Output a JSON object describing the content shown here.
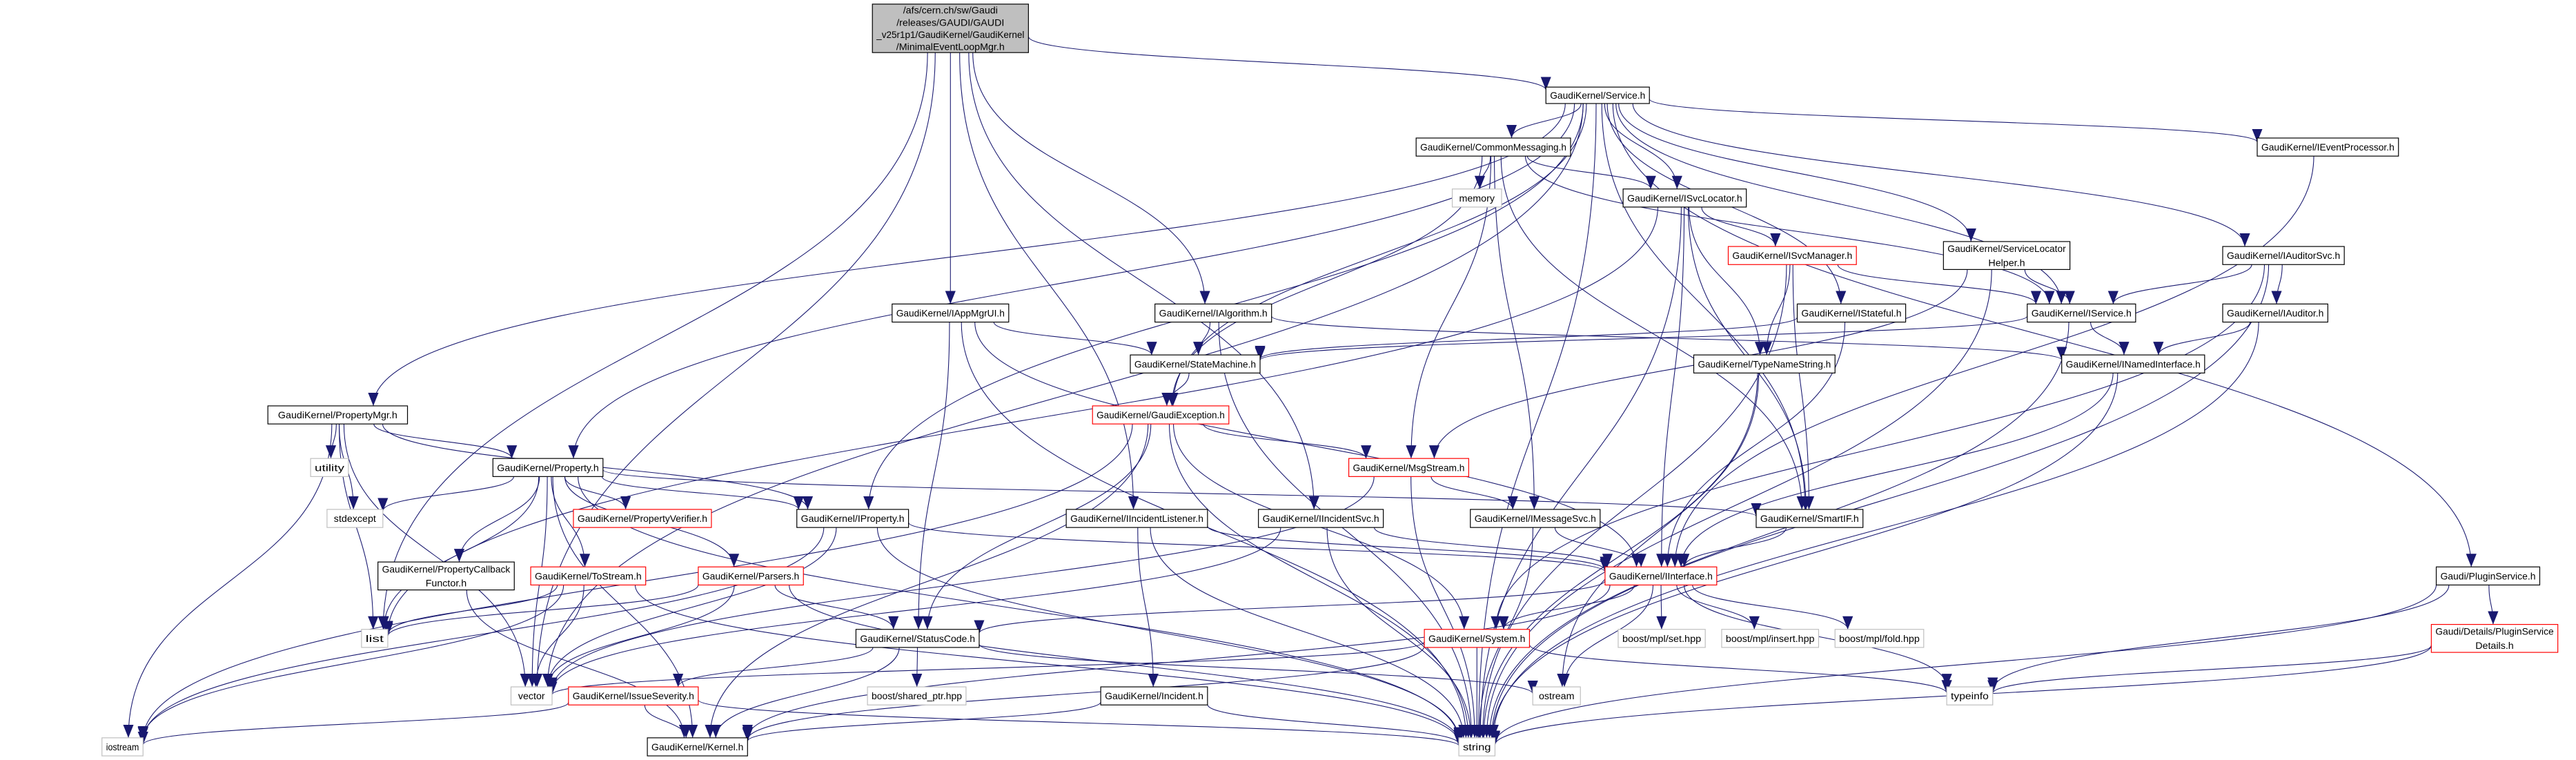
{
  "graph": {
    "type": "include-dependency-graph",
    "colors": {
      "edge": "#191970",
      "documented": "#000000",
      "truncated": "#ff0000",
      "external": "#bfbfbf",
      "current_fill": "#bfbfbf"
    },
    "nodes": [
      {
        "id": "main",
        "style": "current",
        "lines": [
          "/afs/cern.ch/sw/Gaudi",
          "/releases/GAUDI/GAUDI",
          "_v25r1p1/GaudiKernel/GaudiKernel",
          "/MinimalEventLoopMgr.h"
        ]
      },
      {
        "id": "service",
        "style": "documented",
        "lines": [
          "GaudiKernel/Service.h"
        ]
      },
      {
        "id": "commonmessaging",
        "style": "documented",
        "lines": [
          "GaudiKernel/CommonMessaging.h"
        ]
      },
      {
        "id": "memory",
        "style": "external",
        "lines": [
          "memory"
        ]
      },
      {
        "id": "isvclocator",
        "style": "documented",
        "lines": [
          "GaudiKernel/ISvcLocator.h"
        ]
      },
      {
        "id": "ieventprocessor",
        "style": "documented",
        "lines": [
          "GaudiKernel/IEventProcessor.h"
        ]
      },
      {
        "id": "isvcmanager",
        "style": "truncated",
        "lines": [
          "GaudiKernel/ISvcManager.h"
        ]
      },
      {
        "id": "servicelocatorhelper",
        "style": "documented",
        "lines": [
          "GaudiKernel/ServiceLocator",
          "Helper.h"
        ]
      },
      {
        "id": "iauditorsvc",
        "style": "documented",
        "lines": [
          "GaudiKernel/IAuditorSvc.h"
        ]
      },
      {
        "id": "istateful",
        "style": "documented",
        "lines": [
          "GaudiKernel/IStateful.h"
        ]
      },
      {
        "id": "iservice",
        "style": "documented",
        "lines": [
          "GaudiKernel/IService.h"
        ]
      },
      {
        "id": "iauditor",
        "style": "documented",
        "lines": [
          "GaudiKernel/IAuditor.h"
        ]
      },
      {
        "id": "typenamestring",
        "style": "documented",
        "lines": [
          "GaudiKernel/TypeNameString.h"
        ]
      },
      {
        "id": "inamedinterface",
        "style": "documented",
        "lines": [
          "GaudiKernel/INamedInterface.h"
        ]
      },
      {
        "id": "iappmgrui",
        "style": "documented",
        "lines": [
          "GaudiKernel/IAppMgrUI.h"
        ]
      },
      {
        "id": "ialgorithm",
        "style": "documented",
        "lines": [
          "GaudiKernel/IAlgorithm.h"
        ]
      },
      {
        "id": "statemachine",
        "style": "documented",
        "lines": [
          "GaudiKernel/StateMachine.h"
        ]
      },
      {
        "id": "gaudiexception",
        "style": "truncated",
        "lines": [
          "GaudiKernel/GaudiException.h"
        ]
      },
      {
        "id": "propertymgr",
        "style": "documented",
        "lines": [
          "GaudiKernel/PropertyMgr.h"
        ]
      },
      {
        "id": "msgstream",
        "style": "truncated",
        "lines": [
          "GaudiKernel/MsgStream.h"
        ]
      },
      {
        "id": "utility",
        "style": "external",
        "lines": [
          "utility"
        ]
      },
      {
        "id": "property",
        "style": "documented",
        "lines": [
          "GaudiKernel/Property.h"
        ]
      },
      {
        "id": "stdexcept",
        "style": "external",
        "lines": [
          "stdexcept"
        ]
      },
      {
        "id": "propertyverifier",
        "style": "truncated",
        "lines": [
          "GaudiKernel/PropertyVerifier.h"
        ]
      },
      {
        "id": "iproperty",
        "style": "documented",
        "lines": [
          "GaudiKernel/IProperty.h"
        ]
      },
      {
        "id": "iincidentlistener",
        "style": "documented",
        "lines": [
          "GaudiKernel/IIncidentListener.h"
        ]
      },
      {
        "id": "iincidentsvc",
        "style": "documented",
        "lines": [
          "GaudiKernel/IIncidentSvc.h"
        ]
      },
      {
        "id": "imessagesvc",
        "style": "documented",
        "lines": [
          "GaudiKernel/IMessageSvc.h"
        ]
      },
      {
        "id": "smartif",
        "style": "documented",
        "lines": [
          "GaudiKernel/SmartIF.h"
        ]
      },
      {
        "id": "propertycallbackfunctor",
        "style": "documented",
        "lines": [
          "GaudiKernel/PropertyCallback",
          "Functor.h"
        ]
      },
      {
        "id": "tostream",
        "style": "truncated",
        "lines": [
          "GaudiKernel/ToStream.h"
        ]
      },
      {
        "id": "parsers",
        "style": "truncated",
        "lines": [
          "GaudiKernel/Parsers.h"
        ]
      },
      {
        "id": "iinterface",
        "style": "truncated",
        "lines": [
          "GaudiKernel/IInterface.h"
        ]
      },
      {
        "id": "pluginservice",
        "style": "documented",
        "lines": [
          "Gaudi/PluginService.h"
        ]
      },
      {
        "id": "list",
        "style": "external",
        "lines": [
          "list"
        ]
      },
      {
        "id": "statuscode",
        "style": "documented",
        "lines": [
          "GaudiKernel/StatusCode.h"
        ]
      },
      {
        "id": "system",
        "style": "truncated",
        "lines": [
          "GaudiKernel/System.h"
        ]
      },
      {
        "id": "mplset",
        "style": "external",
        "lines": [
          "boost/mpl/set.hpp"
        ]
      },
      {
        "id": "mplinsert",
        "style": "external",
        "lines": [
          "boost/mpl/insert.hpp"
        ]
      },
      {
        "id": "mplfold",
        "style": "external",
        "lines": [
          "boost/mpl/fold.hpp"
        ]
      },
      {
        "id": "plugindetails",
        "style": "truncated",
        "lines": [
          "Gaudi/Details/PluginService",
          "Details.h"
        ]
      },
      {
        "id": "vector",
        "style": "external",
        "lines": [
          "vector"
        ]
      },
      {
        "id": "issueseverity",
        "style": "truncated",
        "lines": [
          "GaudiKernel/IssueSeverity.h"
        ]
      },
      {
        "id": "sharedptr",
        "style": "external",
        "lines": [
          "boost/shared_ptr.hpp"
        ]
      },
      {
        "id": "incident",
        "style": "documented",
        "lines": [
          "GaudiKernel/Incident.h"
        ]
      },
      {
        "id": "ostream",
        "style": "external",
        "lines": [
          "ostream"
        ]
      },
      {
        "id": "typeinfo",
        "style": "external",
        "lines": [
          "typeinfo"
        ]
      },
      {
        "id": "iostream",
        "style": "external",
        "lines": [
          "iostream"
        ]
      },
      {
        "id": "kernel",
        "style": "documented",
        "lines": [
          "GaudiKernel/Kernel.h"
        ]
      },
      {
        "id": "string",
        "style": "external",
        "lines": [
          "string"
        ]
      }
    ],
    "edges": [
      [
        "main",
        "service"
      ],
      [
        "main",
        "iappmgrui"
      ],
      [
        "main",
        "ialgorithm"
      ],
      [
        "main",
        "iincidentlistener"
      ],
      [
        "main",
        "iincidentsvc"
      ],
      [
        "main",
        "vector"
      ],
      [
        "main",
        "list"
      ],
      [
        "service",
        "commonmessaging"
      ],
      [
        "service",
        "isvclocator"
      ],
      [
        "service",
        "iservice"
      ],
      [
        "service",
        "iproperty"
      ],
      [
        "service",
        "property"
      ],
      [
        "service",
        "propertymgr"
      ],
      [
        "service",
        "smartif"
      ],
      [
        "service",
        "istateful"
      ],
      [
        "service",
        "servicelocatorhelper"
      ],
      [
        "service",
        "iauditorsvc"
      ],
      [
        "service",
        "ieventprocessor"
      ],
      [
        "service",
        "pluginservice"
      ],
      [
        "service",
        "vector"
      ],
      [
        "service",
        "string"
      ],
      [
        "service",
        "gaudiexception"
      ],
      [
        "commonmessaging",
        "memory"
      ],
      [
        "commonmessaging",
        "isvclocator"
      ],
      [
        "commonmessaging",
        "iservice"
      ],
      [
        "commonmessaging",
        "msgstream"
      ],
      [
        "commonmessaging",
        "imessagesvc"
      ],
      [
        "commonmessaging",
        "smartif"
      ],
      [
        "commonmessaging",
        "gaudiexception"
      ],
      [
        "isvclocator",
        "isvcmanager"
      ],
      [
        "isvclocator",
        "typenamestring"
      ],
      [
        "isvclocator",
        "smartif"
      ],
      [
        "isvclocator",
        "iinterface"
      ],
      [
        "isvclocator",
        "list"
      ],
      [
        "isvclocator",
        "string"
      ],
      [
        "isvcmanager",
        "iservice"
      ],
      [
        "isvcmanager",
        "typenamestring"
      ],
      [
        "isvcmanager",
        "smartif"
      ],
      [
        "isvcmanager",
        "string"
      ],
      [
        "servicelocatorhelper",
        "iservice"
      ],
      [
        "servicelocatorhelper",
        "msgstream"
      ],
      [
        "servicelocatorhelper",
        "string"
      ],
      [
        "iauditorsvc",
        "iservice"
      ],
      [
        "iauditorsvc",
        "iauditor"
      ],
      [
        "iauditorsvc",
        "system"
      ],
      [
        "iauditorsvc",
        "string"
      ],
      [
        "iauditor",
        "inamedinterface"
      ],
      [
        "iauditor",
        "string"
      ],
      [
        "iservice",
        "inamedinterface"
      ],
      [
        "iservice",
        "statemachine"
      ],
      [
        "iservice",
        "string"
      ],
      [
        "istateful",
        "statemachine"
      ],
      [
        "istateful",
        "iinterface"
      ],
      [
        "inamedinterface",
        "iinterface"
      ],
      [
        "inamedinterface",
        "string"
      ],
      [
        "typenamestring",
        "ostream"
      ],
      [
        "typenamestring",
        "string"
      ],
      [
        "ieventprocessor",
        "iinterface"
      ],
      [
        "iappmgrui",
        "statemachine"
      ],
      [
        "iappmgrui",
        "statuscode"
      ],
      [
        "iappmgrui",
        "iinterface"
      ],
      [
        "iappmgrui",
        "string"
      ],
      [
        "ialgorithm",
        "statemachine"
      ],
      [
        "ialgorithm",
        "inamedinterface"
      ],
      [
        "ialgorithm",
        "string"
      ],
      [
        "statemachine",
        "gaudiexception"
      ],
      [
        "gaudiexception",
        "msgstream"
      ],
      [
        "gaudiexception",
        "statuscode"
      ],
      [
        "gaudiexception",
        "system"
      ],
      [
        "gaudiexception",
        "iostream"
      ],
      [
        "gaudiexception",
        "kernel"
      ],
      [
        "gaudiexception",
        "string"
      ],
      [
        "msgstream",
        "imessagesvc"
      ],
      [
        "msgstream",
        "vector"
      ],
      [
        "msgstream",
        "string"
      ],
      [
        "imessagesvc",
        "iinterface"
      ],
      [
        "imessagesvc",
        "string"
      ],
      [
        "iincidentlistener",
        "iinterface"
      ],
      [
        "iincidentlistener",
        "incident"
      ],
      [
        "iincidentlistener",
        "string"
      ],
      [
        "iincidentsvc",
        "iinterface"
      ],
      [
        "iincidentsvc",
        "string"
      ],
      [
        "iincidentsvc",
        "vector"
      ],
      [
        "smartif",
        "iinterface"
      ],
      [
        "iinterface",
        "statuscode"
      ],
      [
        "iinterface",
        "system"
      ],
      [
        "iinterface",
        "mplset"
      ],
      [
        "iinterface",
        "mplinsert"
      ],
      [
        "iinterface",
        "mplfold"
      ],
      [
        "iinterface",
        "typeinfo"
      ],
      [
        "iinterface",
        "ostream"
      ],
      [
        "iinterface",
        "kernel"
      ],
      [
        "system",
        "vector"
      ],
      [
        "system",
        "kernel"
      ],
      [
        "system",
        "string"
      ],
      [
        "system",
        "typeinfo"
      ],
      [
        "statuscode",
        "issueseverity"
      ],
      [
        "statuscode",
        "sharedptr"
      ],
      [
        "statuscode",
        "kernel"
      ],
      [
        "statuscode",
        "ostream"
      ],
      [
        "issueseverity",
        "kernel"
      ],
      [
        "issueseverity",
        "string"
      ],
      [
        "issueseverity",
        "iostream"
      ],
      [
        "incident",
        "kernel"
      ],
      [
        "incident",
        "string"
      ],
      [
        "propertymgr",
        "property"
      ],
      [
        "propertymgr",
        "iproperty"
      ],
      [
        "propertymgr",
        "utility"
      ],
      [
        "propertymgr",
        "stdexcept"
      ],
      [
        "propertymgr",
        "iostream"
      ],
      [
        "propertymgr",
        "vector"
      ],
      [
        "propertymgr",
        "list"
      ],
      [
        "property",
        "stdexcept"
      ],
      [
        "property",
        "propertyverifier"
      ],
      [
        "property",
        "propertycallbackfunctor"
      ],
      [
        "property",
        "tostream"
      ],
      [
        "property",
        "parsers"
      ],
      [
        "property",
        "iproperty"
      ],
      [
        "property",
        "smartif"
      ],
      [
        "property",
        "string"
      ],
      [
        "property",
        "vector"
      ],
      [
        "property",
        "list"
      ],
      [
        "property",
        "kernel"
      ],
      [
        "iproperty",
        "iinterface"
      ],
      [
        "iproperty",
        "iostream"
      ],
      [
        "iproperty",
        "string"
      ],
      [
        "iproperty",
        "vector"
      ],
      [
        "propertycallbackfunctor",
        "kernel"
      ],
      [
        "tostream",
        "list"
      ],
      [
        "tostream",
        "vector"
      ],
      [
        "tostream",
        "iostream"
      ],
      [
        "tostream",
        "string"
      ],
      [
        "parsers",
        "statuscode"
      ],
      [
        "parsers",
        "list"
      ],
      [
        "parsers",
        "vector"
      ],
      [
        "parsers",
        "string"
      ],
      [
        "pluginservice",
        "typeinfo"
      ],
      [
        "pluginservice",
        "plugindetails"
      ],
      [
        "pluginservice",
        "string"
      ],
      [
        "plugindetails",
        "typeinfo"
      ],
      [
        "plugindetails",
        "string"
      ]
    ]
  }
}
